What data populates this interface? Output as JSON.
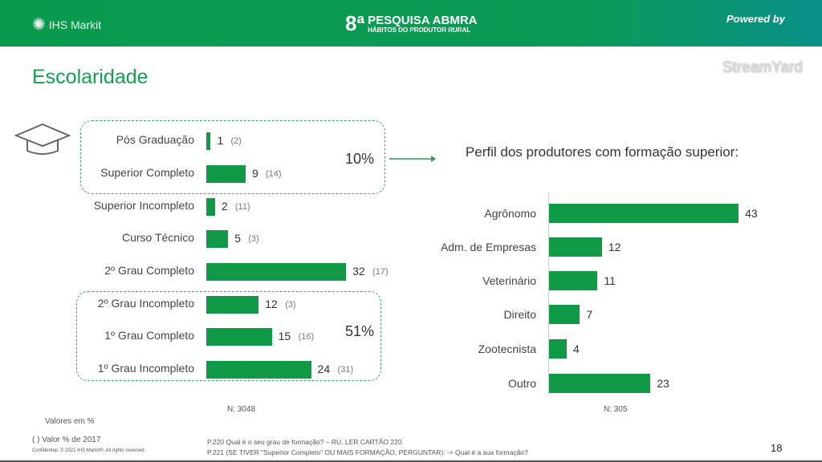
{
  "header": {
    "logo": "IHS Markit",
    "survey_number": "8ª",
    "survey_title": "PESQUISA ABMRA",
    "survey_subtitle": "HÁBITOS DO PRODUTOR RURAL",
    "powered": "Powered by",
    "streamyard": "StreamYard"
  },
  "page_title": "Escolaridade",
  "left_chart": {
    "type": "bar",
    "categories": [
      "Pós Graduação",
      "Superior Completo",
      "Superior Incompleto",
      "Curso Técnico",
      "2º Grau Completo",
      "2º Grau Incompleto",
      "1º Grau Completo",
      "1º Grau Incompleto"
    ],
    "values": [
      1,
      9,
      2,
      5,
      32,
      12,
      15,
      24
    ],
    "values_2017": [
      "(2)",
      "(14)",
      "(11)",
      "(3)",
      "(17)",
      "(3)",
      "(16)",
      "(31)"
    ],
    "group_top_pct": "10%",
    "group_bottom_pct": "51%",
    "n": "N: 3048",
    "color": "#109a48"
  },
  "right_chart": {
    "type": "bar",
    "title": "Perfil dos produtores com formação superior:",
    "categories": [
      "Agrônomo",
      "Adm. de Empresas",
      "Veterinário",
      "Direito",
      "Zootecnista",
      "Outro"
    ],
    "values": [
      43,
      12,
      11,
      7,
      4,
      23
    ],
    "n": "N: 305"
  },
  "footer": {
    "values_note": "Valores em %",
    "legend_2017": "( )  Valor % de 2017",
    "confidential": "Confidential. © 2021 IHS Markit®. All rights reserved.",
    "q1": "P.220 Qual é o seu grau de formação? – RU. LER CARTÃO 220",
    "q2": "P.221 (SE TIVER  \"Superior Completo\"  OU MAIS FORMAÇÃO, PERGUNTAR): -> Qual é a sua formação?",
    "page": "18"
  }
}
